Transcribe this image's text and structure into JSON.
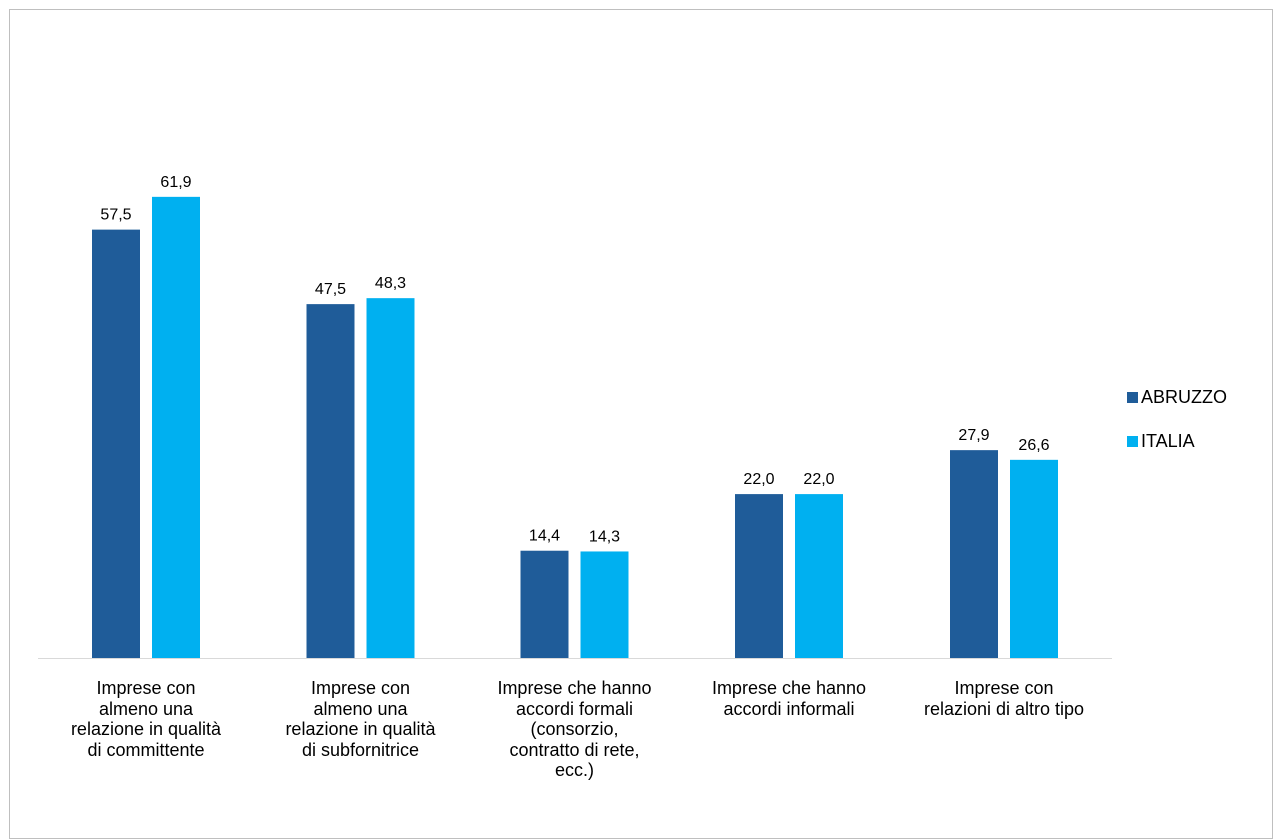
{
  "chart_data": {
    "type": "bar",
    "categories": [
      "Impresse con almeno una relazione in qualità di committente",
      "Imprese con almeno una relazione in qualità di subfornitrice",
      "Imprese che hanno accordi formali (consorzio, contratto di rete, ecc.)",
      "Imprese che hanno accordi informali",
      "Imprese con relazioni di altro tipo"
    ],
    "category_lines": [
      [
        "Imprese con",
        "almeno una",
        "relazione in qualità",
        "di committente"
      ],
      [
        "Imprese  con",
        "almeno una",
        "relazione in qualità",
        "di subfornitrice"
      ],
      [
        "Imprese che hanno",
        "accordi formali",
        "(consorzio,",
        "contratto di rete,",
        "ecc.)"
      ],
      [
        "Imprese che hanno",
        "accordi informali"
      ],
      [
        "Imprese con",
        "relazioni di altro tipo"
      ]
    ],
    "series": [
      {
        "name": "ABRUZZO",
        "color": "#1F5C99",
        "values": [
          57.5,
          47.5,
          14.4,
          22.0,
          27.9
        ],
        "labels": [
          "57,5",
          "47,5",
          "14,4",
          "22,0",
          "27,9"
        ]
      },
      {
        "name": "ITALIA",
        "color": "#00B0F0",
        "values": [
          61.9,
          48.3,
          14.3,
          22.0,
          26.6
        ],
        "labels": [
          "61,9",
          "48,3",
          "14,3",
          "22,0",
          "26,6"
        ]
      }
    ],
    "ylim": [
      0,
      70
    ],
    "grid": false,
    "legend_position": "right"
  }
}
